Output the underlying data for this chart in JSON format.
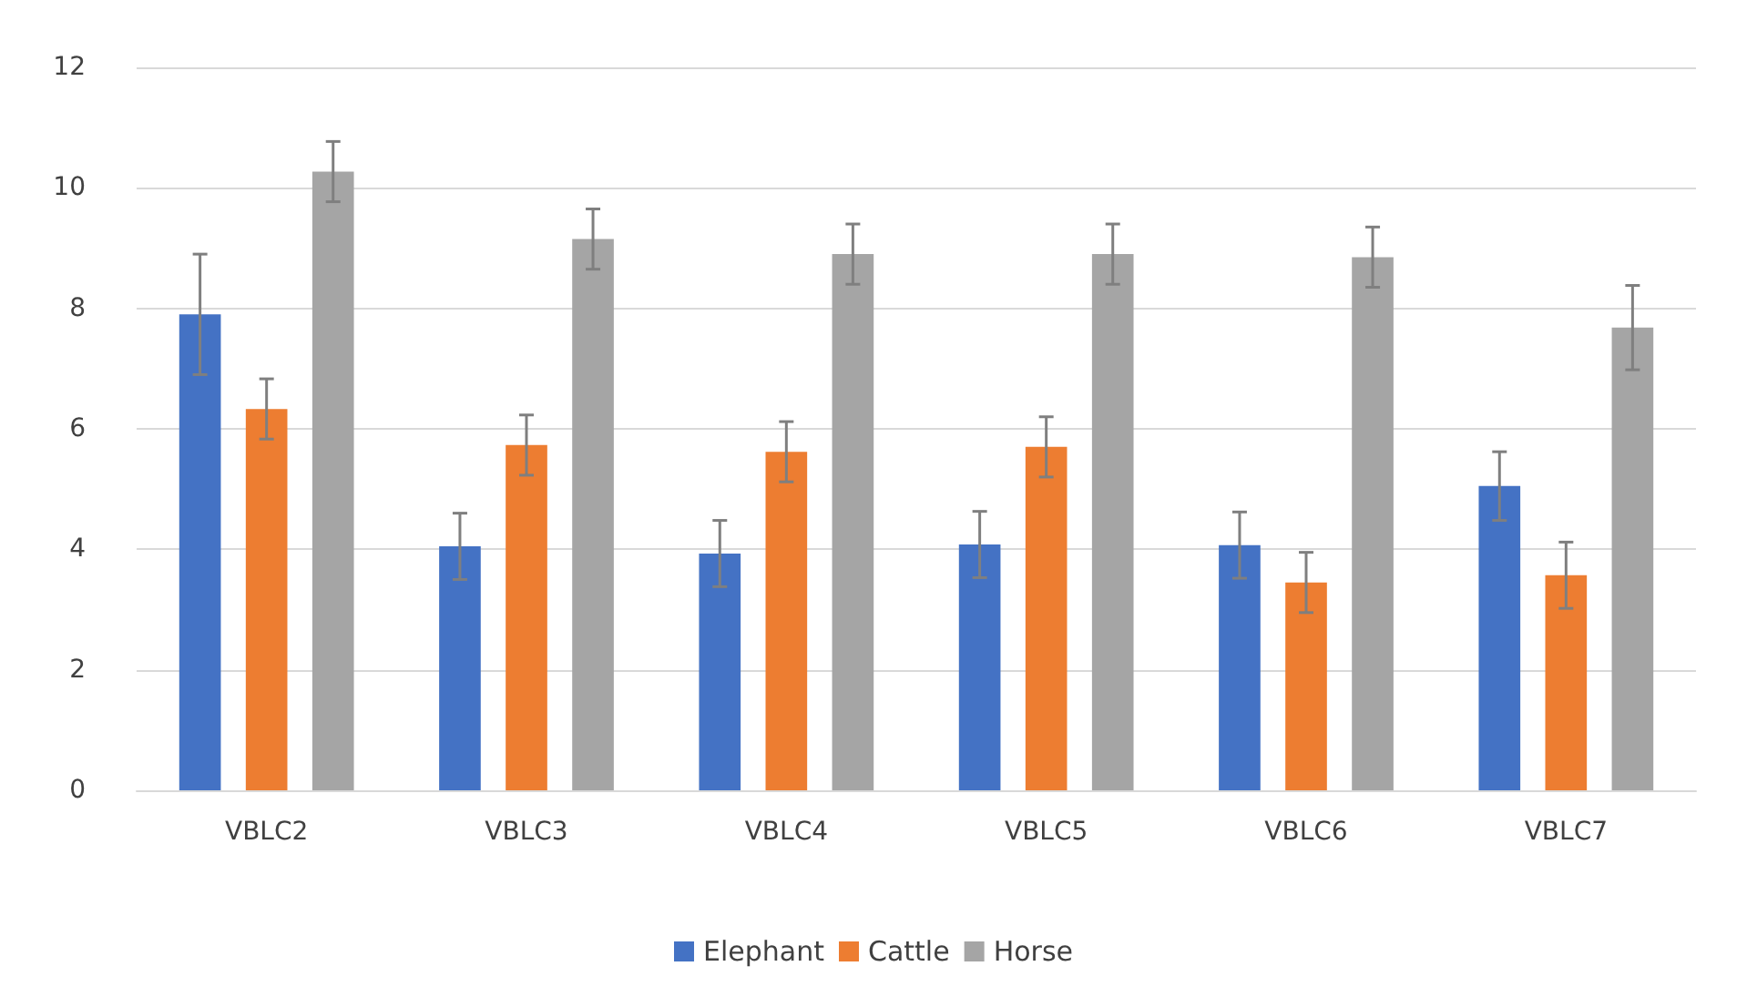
{
  "chart_data": {
    "type": "bar",
    "categories": [
      "VBLC2",
      "VBLC3",
      "VBLC4",
      "VBLC5",
      "VBLC6",
      "VBLC7"
    ],
    "series": [
      {
        "name": "Elephant",
        "color": "#4472c4",
        "values": [
          7.9,
          4.05,
          3.93,
          4.08,
          4.07,
          5.05
        ],
        "errors": [
          1.0,
          0.55,
          0.55,
          0.55,
          0.55,
          0.57
        ]
      },
      {
        "name": "Cattle",
        "color": "#ed7d31",
        "values": [
          6.33,
          5.73,
          5.62,
          5.7,
          3.45,
          3.57
        ],
        "errors": [
          0.5,
          0.5,
          0.5,
          0.5,
          0.5,
          0.55
        ]
      },
      {
        "name": "Horse",
        "color": "#a5a5a5",
        "values": [
          10.27,
          9.15,
          8.9,
          8.9,
          8.85,
          7.68
        ],
        "errors": [
          0.5,
          0.5,
          0.5,
          0.5,
          0.5,
          0.7
        ]
      }
    ],
    "ylim": [
      0,
      12
    ],
    "yticks": [
      0,
      2,
      4,
      6,
      8,
      10,
      12
    ],
    "grid": "y",
    "legend": "bottom"
  }
}
